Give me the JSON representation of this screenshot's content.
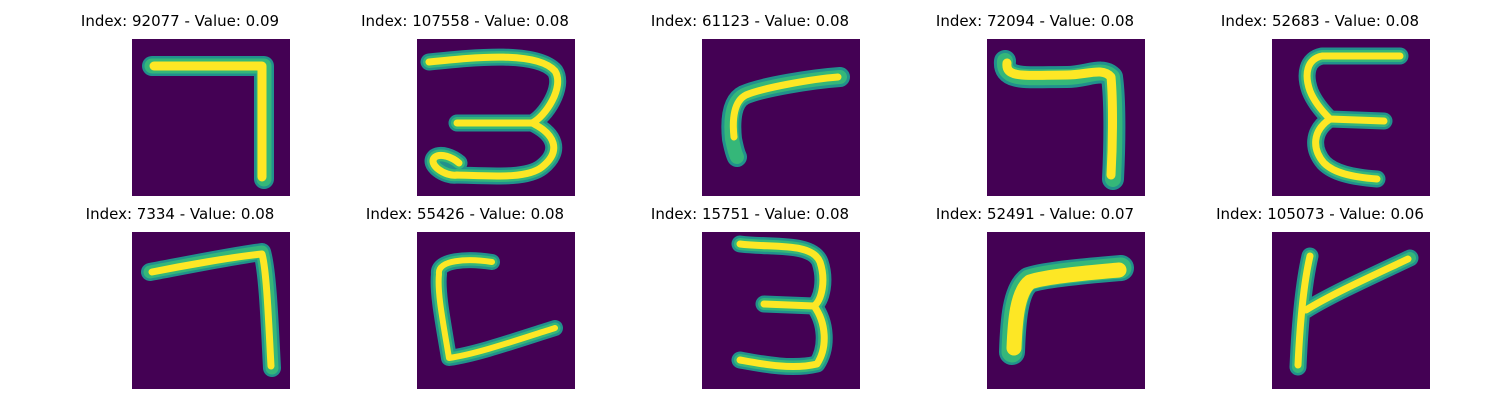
{
  "colors": {
    "background": "#440154",
    "foreground": "#fde725",
    "edge": "#35b779",
    "edge_dark": "#21918c"
  },
  "panels": [
    {
      "title": "Index: 92077 - Value: 0.09"
    },
    {
      "title": "Index: 107558 - Value: 0.08"
    },
    {
      "title": "Index: 61123 - Value: 0.08"
    },
    {
      "title": "Index: 72094 - Value: 0.08"
    },
    {
      "title": "Index: 52683 - Value: 0.08"
    },
    {
      "title": "Index: 7334 - Value: 0.08"
    },
    {
      "title": "Index: 55426 - Value: 0.08"
    },
    {
      "title": "Index: 15751 - Value: 0.08"
    },
    {
      "title": "Index: 52491 - Value: 0.07"
    },
    {
      "title": "Index: 105073 - Value: 0.06"
    }
  ]
}
